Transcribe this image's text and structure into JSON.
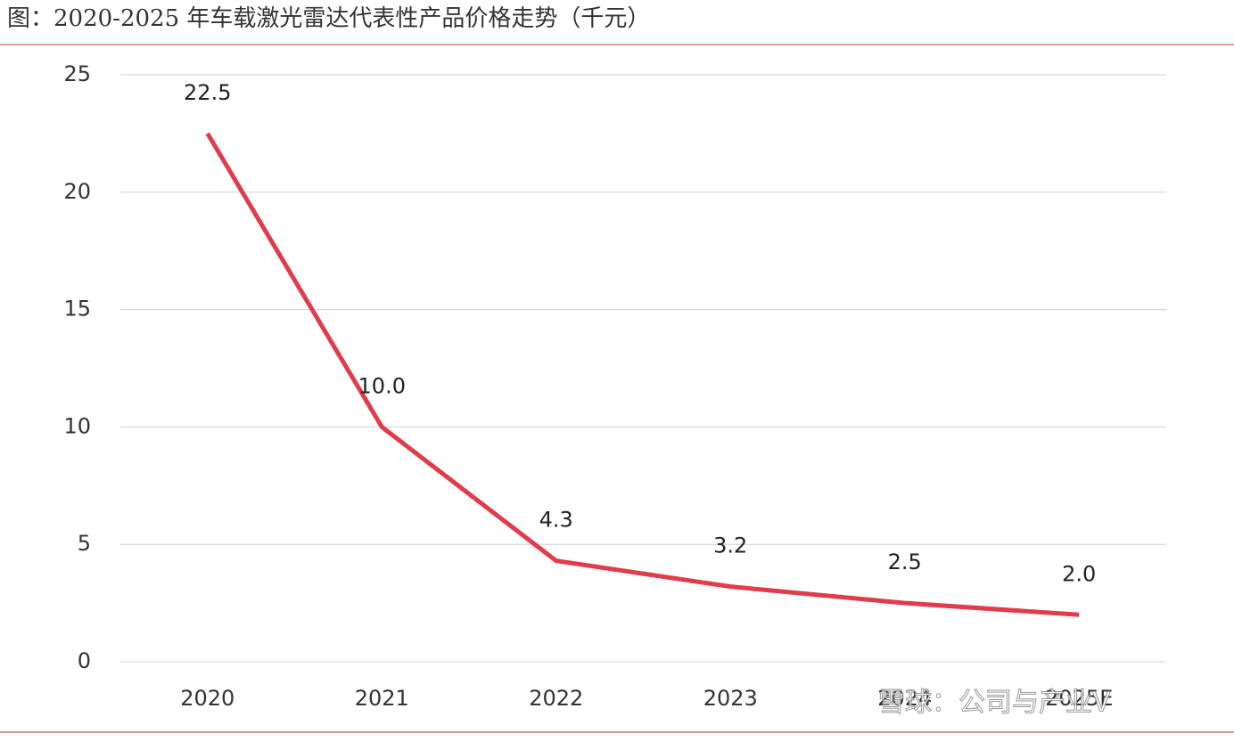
{
  "chart_data": {
    "type": "line",
    "title": "图：2020-2025 年车载激光雷达代表性产品价格走势（千元）",
    "categories": [
      "2020",
      "2021",
      "2022",
      "2023",
      "2024",
      "2025E"
    ],
    "values": [
      22.5,
      10,
      4.3,
      3.2,
      2.5,
      2
    ],
    "value_labels": [
      "22.5",
      "10.0",
      "4.3",
      "3.2",
      "2.5",
      "2.0"
    ],
    "color": "#e03c4c",
    "ylim": [
      0,
      25
    ],
    "yticks": [
      0,
      5,
      10,
      15,
      20,
      25
    ],
    "grid": true,
    "watermark": "雪球：公司与产业V"
  }
}
